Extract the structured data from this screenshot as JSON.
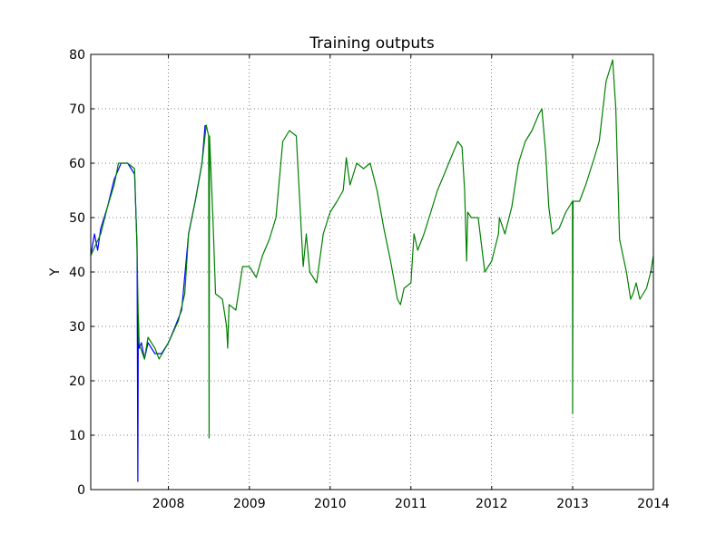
{
  "chart_data": {
    "type": "line",
    "title": "Training outputs",
    "xlabel": "",
    "ylabel": "Y",
    "xlim": [
      "2007-01-15",
      "2014-01-01"
    ],
    "ylim": [
      0,
      80
    ],
    "x_ticks": [
      "2008",
      "2009",
      "2010",
      "2011",
      "2012",
      "2013",
      "2014"
    ],
    "y_ticks": [
      "0",
      "10",
      "20",
      "30",
      "40",
      "50",
      "60",
      "70",
      "80"
    ],
    "grid": true,
    "legend": "none",
    "series": [
      {
        "color": "#0000ff",
        "points": [
          [
            "2007-01-15",
            43
          ],
          [
            "2007-02-01",
            47
          ],
          [
            "2007-02-15",
            44
          ],
          [
            "2007-03-01",
            48
          ],
          [
            "2007-04-01",
            52
          ],
          [
            "2007-05-01",
            57
          ],
          [
            "2007-06-01",
            60
          ],
          [
            "2007-07-01",
            60
          ],
          [
            "2007-08-01",
            58
          ],
          [
            "2007-08-12",
            45
          ],
          [
            "2007-08-16",
            1.5
          ],
          [
            "2007-08-18",
            32
          ],
          [
            "2007-08-22",
            26
          ],
          [
            "2007-09-01",
            27
          ],
          [
            "2007-09-15",
            24
          ],
          [
            "2007-10-01",
            27
          ],
          [
            "2007-11-01",
            25
          ],
          [
            "2007-12-01",
            25
          ],
          [
            "2008-01-01",
            27
          ],
          [
            "2008-02-01",
            30
          ],
          [
            "2008-03-01",
            33
          ],
          [
            "2008-04-01",
            47
          ],
          [
            "2008-05-01",
            53
          ],
          [
            "2008-06-01",
            60
          ],
          [
            "2008-06-15",
            67
          ]
        ]
      },
      {
        "color": "#008000",
        "points": [
          [
            "2007-01-15",
            43
          ],
          [
            "2007-03-01",
            47
          ],
          [
            "2007-04-01",
            52
          ],
          [
            "2007-05-01",
            56
          ],
          [
            "2007-05-20",
            60
          ],
          [
            "2007-07-01",
            60
          ],
          [
            "2007-08-01",
            59
          ],
          [
            "2007-08-12",
            44
          ],
          [
            "2007-08-20",
            27
          ],
          [
            "2007-09-15",
            24
          ],
          [
            "2007-10-01",
            28
          ],
          [
            "2007-11-01",
            26
          ],
          [
            "2007-11-20",
            24
          ],
          [
            "2008-01-01",
            27
          ],
          [
            "2008-02-15",
            31
          ],
          [
            "2008-03-15",
            36
          ],
          [
            "2008-04-01",
            47
          ],
          [
            "2008-05-01",
            53
          ],
          [
            "2008-06-01",
            60
          ],
          [
            "2008-06-20",
            67
          ],
          [
            "2008-07-01",
            65
          ],
          [
            "2008-07-03",
            9.5
          ],
          [
            "2008-07-05",
            65
          ],
          [
            "2008-07-20",
            50
          ],
          [
            "2008-08-01",
            36
          ],
          [
            "2008-09-01",
            35
          ],
          [
            "2008-09-20",
            30
          ],
          [
            "2008-09-25",
            26
          ],
          [
            "2008-10-01",
            34
          ],
          [
            "2008-11-01",
            33
          ],
          [
            "2008-12-01",
            41
          ],
          [
            "2009-01-01",
            41
          ],
          [
            "2009-02-01",
            39
          ],
          [
            "2009-03-01",
            43
          ],
          [
            "2009-04-01",
            46
          ],
          [
            "2009-05-01",
            50
          ],
          [
            "2009-06-01",
            64
          ],
          [
            "2009-07-01",
            66
          ],
          [
            "2009-08-01",
            65
          ],
          [
            "2009-09-01",
            41
          ],
          [
            "2009-09-15",
            47
          ],
          [
            "2009-10-01",
            40
          ],
          [
            "2009-11-01",
            38
          ],
          [
            "2009-12-01",
            47
          ],
          [
            "2010-01-01",
            51
          ],
          [
            "2010-02-01",
            53
          ],
          [
            "2010-03-01",
            55
          ],
          [
            "2010-03-15",
            61
          ],
          [
            "2010-04-01",
            56
          ],
          [
            "2010-05-01",
            60
          ],
          [
            "2010-06-01",
            59
          ],
          [
            "2010-07-01",
            60
          ],
          [
            "2010-08-01",
            55
          ],
          [
            "2010-09-01",
            48
          ],
          [
            "2010-10-01",
            42
          ],
          [
            "2010-11-01",
            35
          ],
          [
            "2010-11-15",
            34
          ],
          [
            "2010-12-01",
            37
          ],
          [
            "2011-01-01",
            38
          ],
          [
            "2011-01-15",
            47
          ],
          [
            "2011-02-01",
            44
          ],
          [
            "2011-03-01",
            47
          ],
          [
            "2011-04-01",
            51
          ],
          [
            "2011-05-01",
            55
          ],
          [
            "2011-06-01",
            58
          ],
          [
            "2011-07-01",
            61
          ],
          [
            "2011-08-01",
            64
          ],
          [
            "2011-08-20",
            63
          ],
          [
            "2011-09-01",
            55
          ],
          [
            "2011-09-10",
            42
          ],
          [
            "2011-09-15",
            51
          ],
          [
            "2011-10-01",
            50
          ],
          [
            "2011-11-01",
            50
          ],
          [
            "2011-12-01",
            40
          ],
          [
            "2012-01-01",
            42
          ],
          [
            "2012-02-01",
            47
          ],
          [
            "2012-02-05",
            50
          ],
          [
            "2012-03-01",
            47
          ],
          [
            "2012-04-01",
            52
          ],
          [
            "2012-05-01",
            60
          ],
          [
            "2012-06-01",
            64
          ],
          [
            "2012-07-01",
            66
          ],
          [
            "2012-08-01",
            69
          ],
          [
            "2012-08-15",
            70
          ],
          [
            "2012-09-01",
            62
          ],
          [
            "2012-09-15",
            52
          ],
          [
            "2012-10-01",
            47
          ],
          [
            "2012-11-01",
            48
          ],
          [
            "2012-12-01",
            51
          ],
          [
            "2012-12-31",
            53
          ],
          [
            "2013-01-01",
            14
          ],
          [
            "2013-01-03",
            53
          ],
          [
            "2013-02-01",
            53
          ],
          [
            "2013-03-01",
            56
          ],
          [
            "2013-04-01",
            60
          ],
          [
            "2013-05-01",
            64
          ],
          [
            "2013-06-01",
            75
          ],
          [
            "2013-07-01",
            79
          ],
          [
            "2013-07-15",
            70
          ],
          [
            "2013-08-01",
            46
          ],
          [
            "2013-09-01",
            40
          ],
          [
            "2013-09-20",
            35
          ],
          [
            "2013-10-01",
            36
          ],
          [
            "2013-10-15",
            38
          ],
          [
            "2013-11-01",
            35
          ],
          [
            "2013-12-01",
            37
          ],
          [
            "2013-12-20",
            40
          ],
          [
            "2014-01-01",
            43
          ]
        ]
      }
    ]
  }
}
